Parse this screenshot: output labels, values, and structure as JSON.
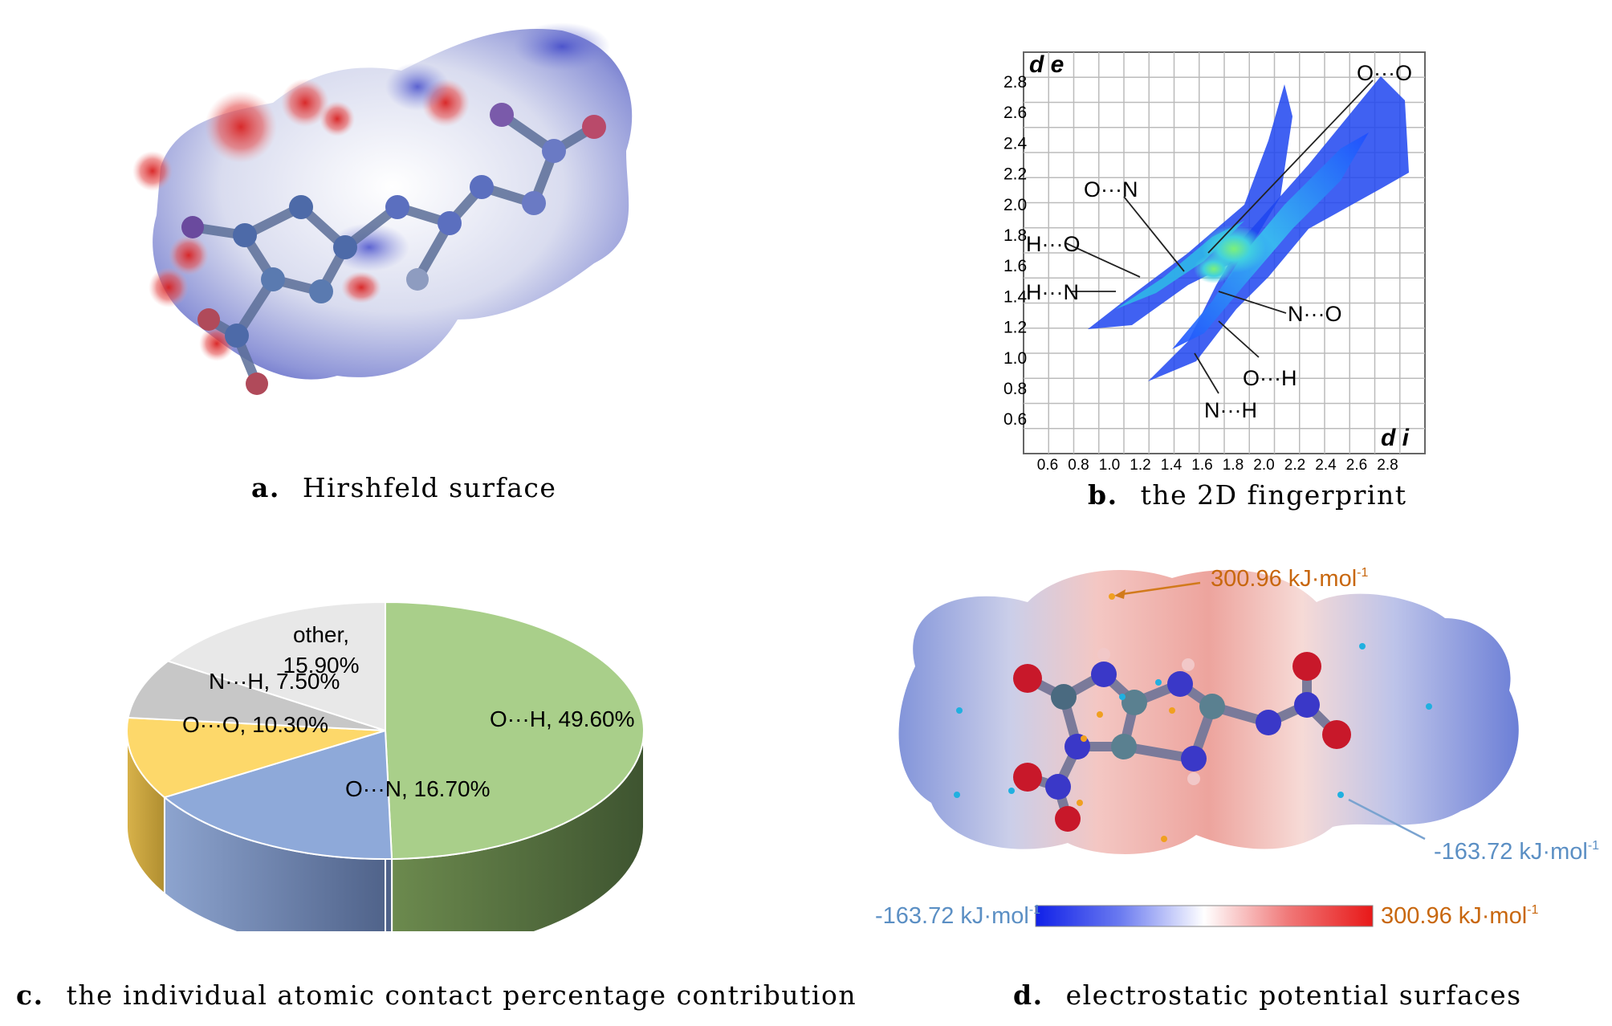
{
  "panels": {
    "a": {
      "letter": "a.",
      "caption": "Hirshfeld surface"
    },
    "b": {
      "letter": "b.",
      "caption": "the 2D fingerprint"
    },
    "c": {
      "letter": "c.",
      "caption": "the individual atomic contact percentage contribution"
    },
    "d": {
      "letter": "d.",
      "caption": "electrostatic potential surfaces"
    }
  },
  "fingerprint": {
    "y_axis_label": "d e",
    "x_axis_label": "d i",
    "y_ticks": [
      "2.8",
      "2.6",
      "2.4",
      "2.2",
      "2.0",
      "1.8",
      "1.6",
      "1.4",
      "1.2",
      "1.0",
      "0.8",
      "0.6"
    ],
    "x_ticks": [
      "0.6",
      "0.8",
      "1.0",
      "1.2",
      "1.4",
      "1.6",
      "1.8",
      "2.0",
      "2.2",
      "2.4",
      "2.6",
      "2.8"
    ],
    "labels": [
      "O···O",
      "O···N",
      "H···O",
      "H···N",
      "N···O",
      "O···H",
      "N···H"
    ]
  },
  "chart_data": {
    "type": "pie",
    "categories": [
      "O···H",
      "O···N",
      "O···O",
      "N···H",
      "other"
    ],
    "values": [
      49.6,
      16.7,
      10.3,
      7.5,
      15.9
    ],
    "labels": [
      "O···H, 49.60%",
      "O···N, 16.70%",
      "O···O, 10.30%",
      "N···H, 7.50%",
      "other, 15.90%"
    ],
    "colors": [
      "#a9cf8a",
      "#8ea9d9",
      "#fdd86a",
      "#c7c7c7",
      "#e8e8e8"
    ]
  },
  "esp": {
    "max_label": "300.96 kJ·mol",
    "min_label": "-163.72 kJ·mol",
    "superscript": "-1",
    "max_color": "#c8670e",
    "min_color": "#5b8fc4"
  }
}
